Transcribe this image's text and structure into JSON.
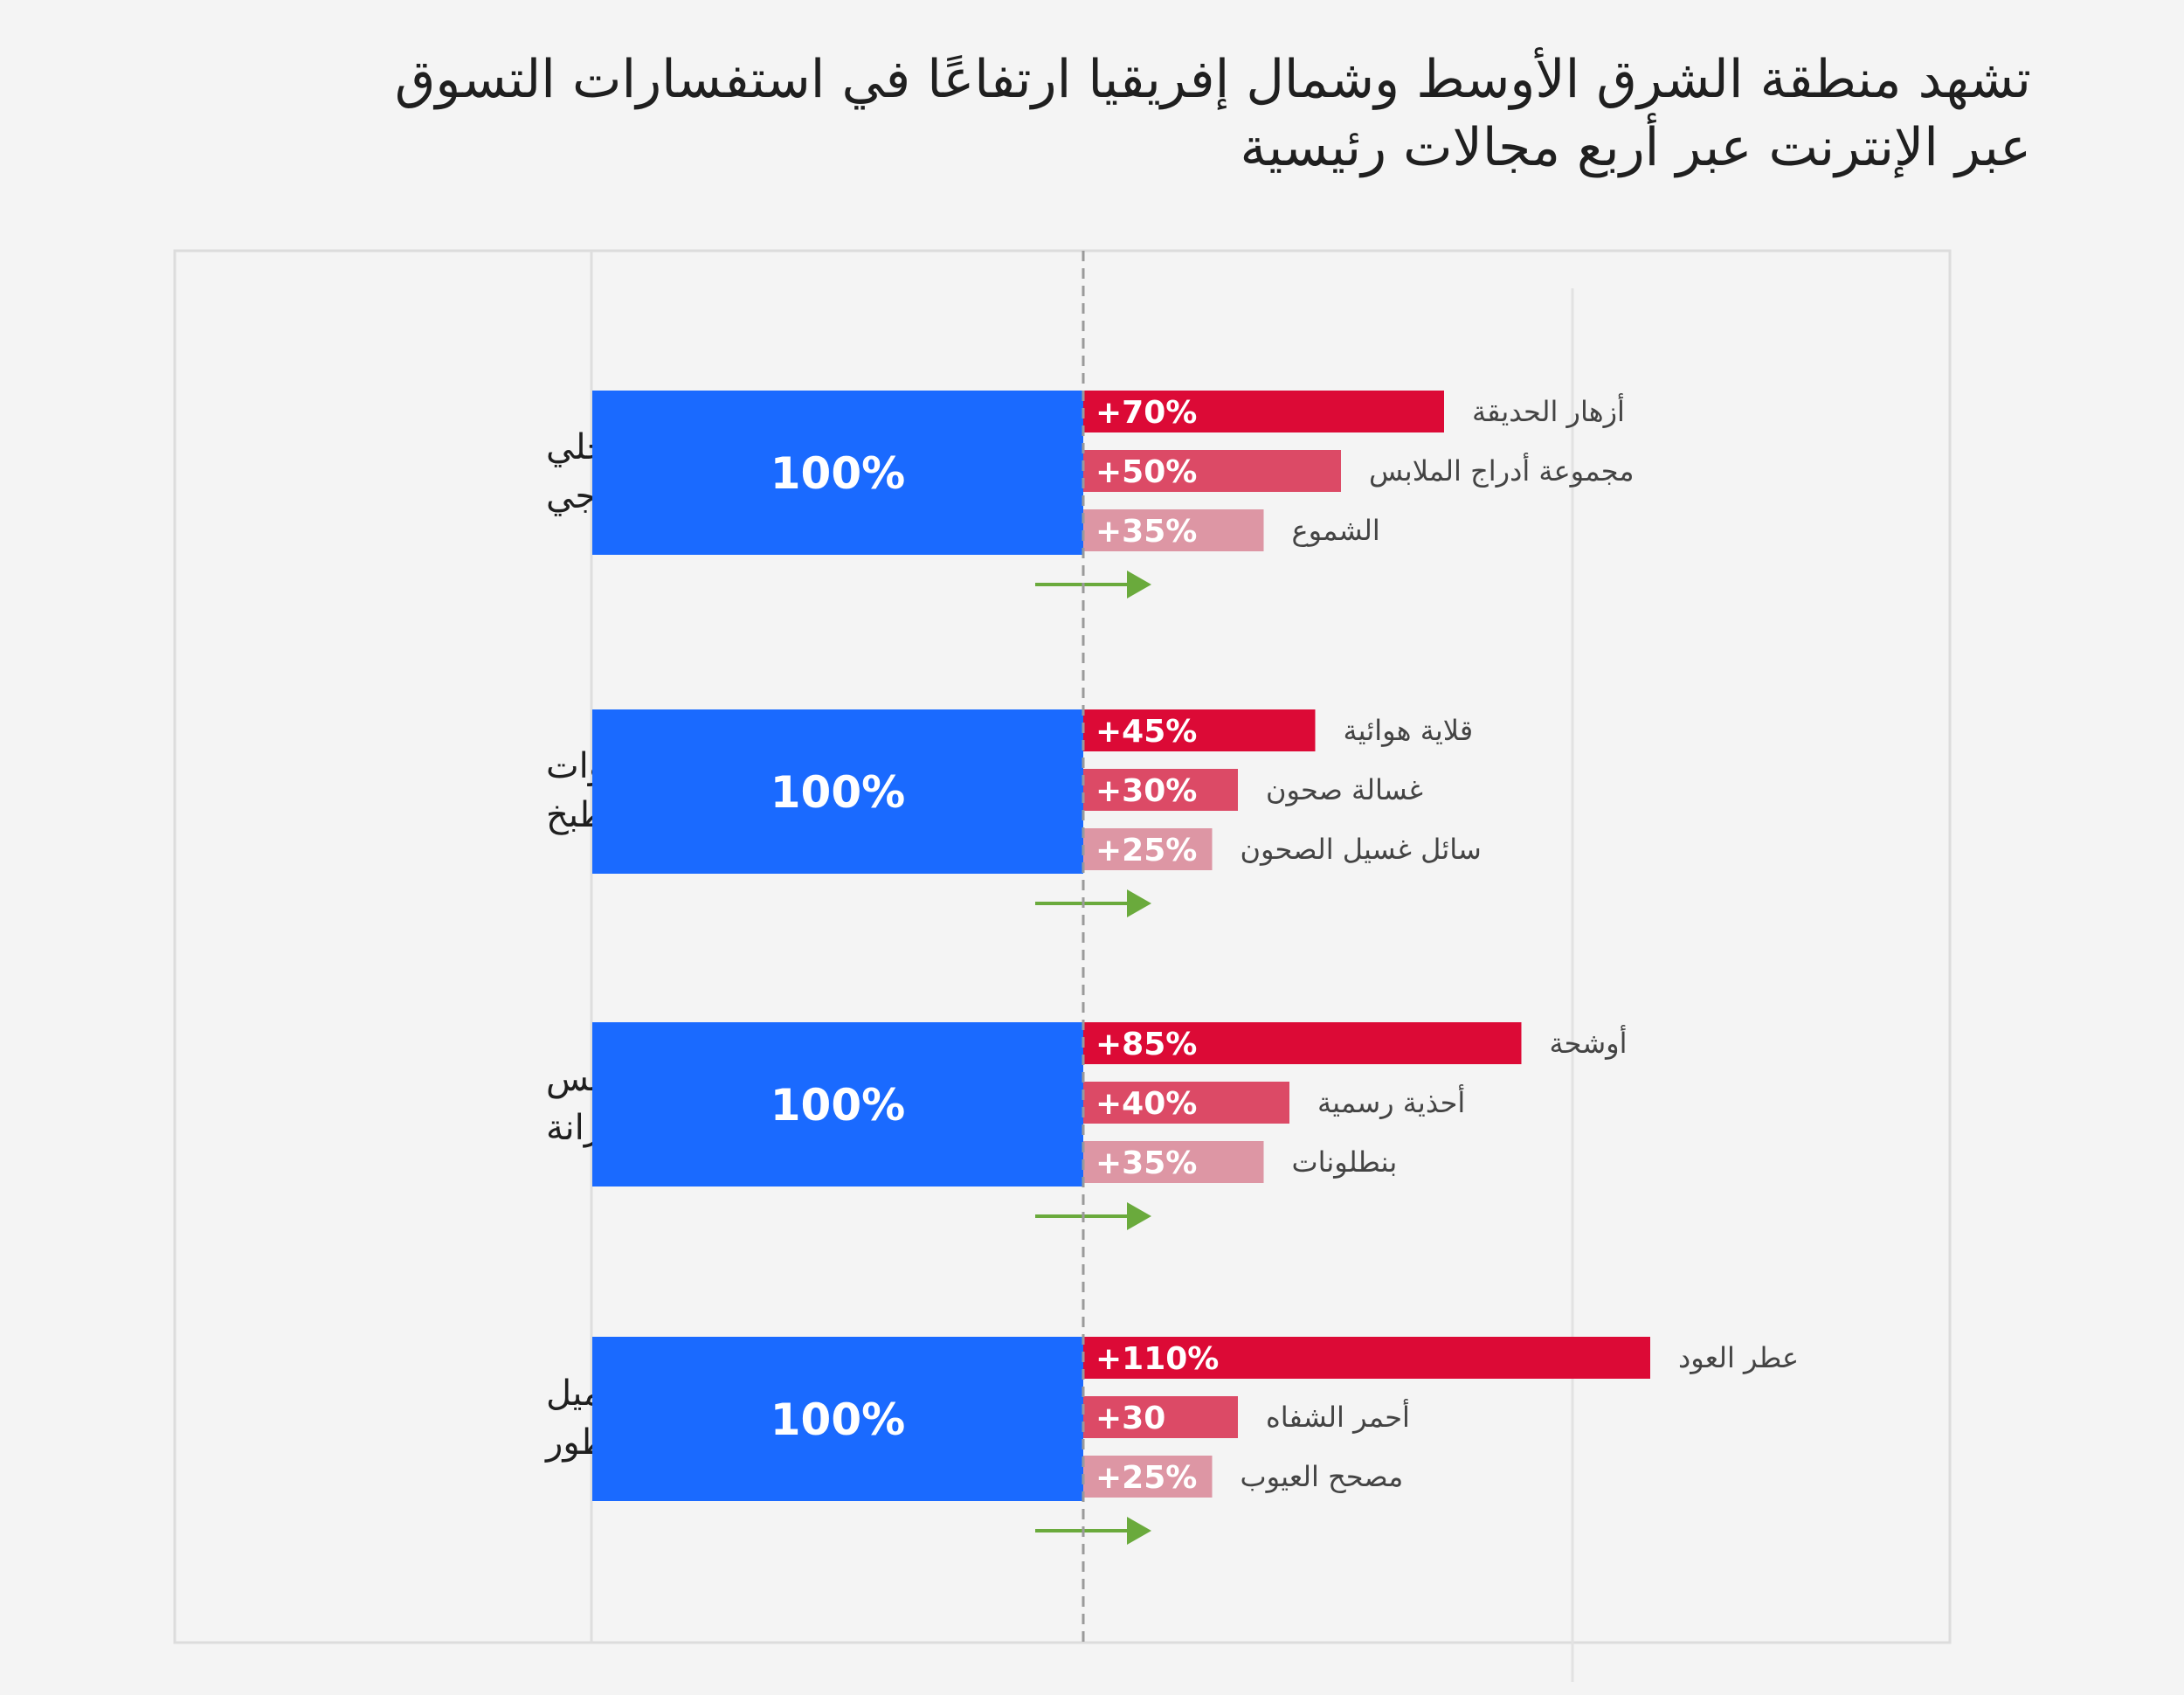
{
  "title": {
    "line1": "تشهد منطقة الشرق الأوسط وشمال إفريقيا ارتفاعًا في استفسارات التسوق",
    "line2": "عبر الإنترنت عبر أربع مجالات رئيسية"
  },
  "colors": {
    "background": "#f4f4f4",
    "base_bar": "#1a6aff",
    "growth_high": "#dc0a36",
    "growth_mid": "#dc4a66",
    "growth_low": "#dd96a4",
    "arrow": "#6aaa3c",
    "reference_line": "#9a9a9a"
  },
  "chart_data": {
    "type": "bar",
    "orientation": "horizontal",
    "baseline_percent": 100,
    "xlim": [
      -100,
      130
    ],
    "grid": false,
    "legend": "none",
    "groups": [
      {
        "category": "ديكور داخلي وخارجي",
        "category_lines": [
          "ديكور داخلي",
          "وخارجي"
        ],
        "base_label": "100%",
        "items": [
          {
            "name": "أزهار الحديقة",
            "value": 70,
            "label": "+70%"
          },
          {
            "name": "مجموعة أدراج الملابس",
            "value": 50,
            "label": "+50%"
          },
          {
            "name": "الشموع",
            "value": 35,
            "label": "+35%"
          }
        ]
      },
      {
        "category": "أدوات المطبخ",
        "category_lines": [
          "أدوات",
          "المطبخ"
        ],
        "base_label": "100%",
        "items": [
          {
            "name": "قلاية هوائية",
            "value": 45,
            "label": "+45%"
          },
          {
            "name": "غسالة صحون",
            "value": 30,
            "label": "+30%"
          },
          {
            "name": "سائل غسيل الصحون",
            "value": 25,
            "label": "+25%"
          }
        ]
      },
      {
        "category": "تحديثات الملابس والخزانة",
        "category_lines": [
          "تحديثات الملابس",
          "والخزانة"
        ],
        "base_label": "100%",
        "items": [
          {
            "name": "أوشحة",
            "value": 85,
            "label": "+85%"
          },
          {
            "name": "أحذية رسمية",
            "value": 40,
            "label": "+40%"
          },
          {
            "name": "بنطلونات",
            "value": 35,
            "label": "+35%"
          }
        ]
      },
      {
        "category": "مستحضرات التجميل والعطور",
        "category_lines": [
          "مستحضرات التجميل",
          "والعطور"
        ],
        "base_label": "100%",
        "items": [
          {
            "name": "عطر العود",
            "value": 110,
            "label": "+110%"
          },
          {
            "name": "أحمر الشفاه",
            "value": 30,
            "label": "+30"
          },
          {
            "name": "مصحح العيوب",
            "value": 25,
            "label": "+25%"
          }
        ]
      }
    ]
  }
}
